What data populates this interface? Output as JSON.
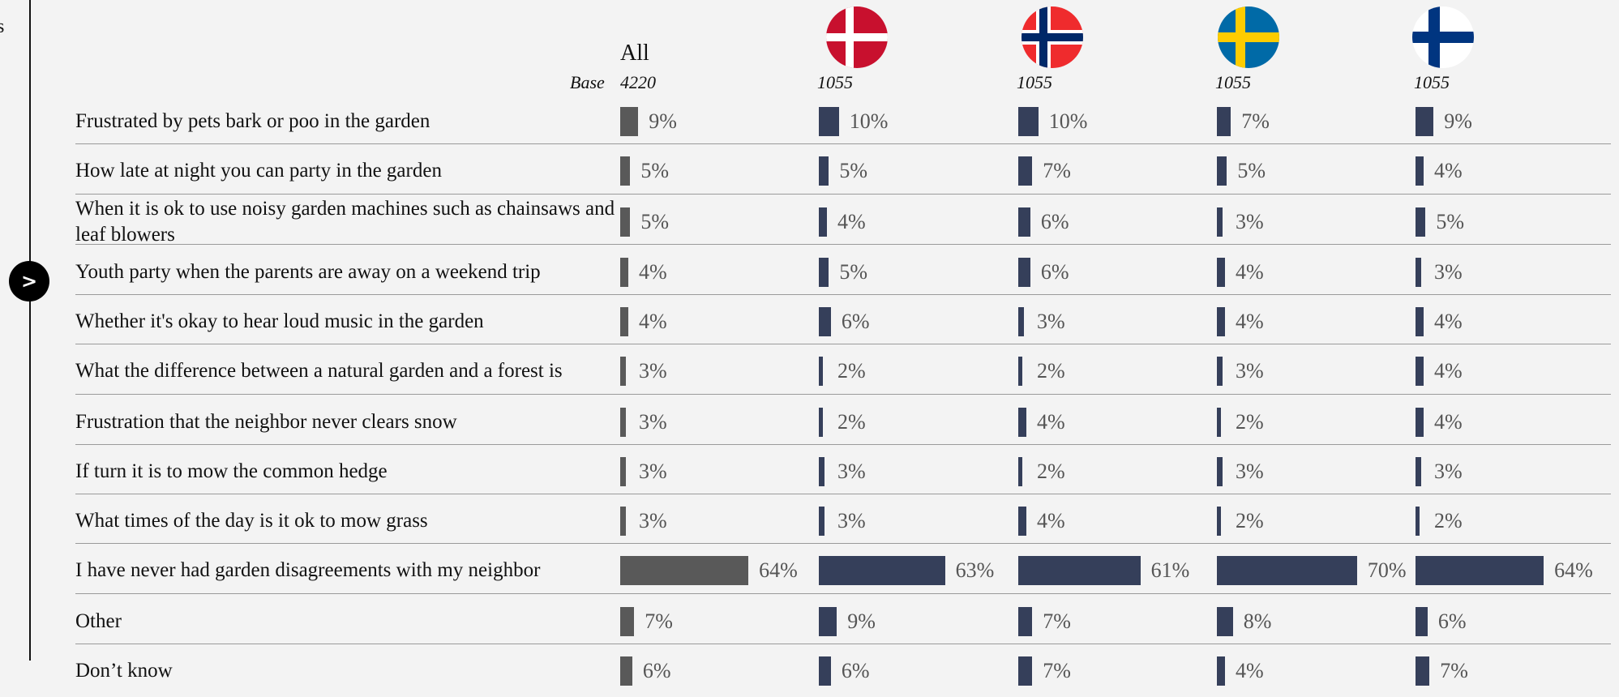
{
  "sidebar_text": "s",
  "button": ">",
  "table": {
    "base_label": "Base",
    "rows": [
      "Frustrated by pets bark or poo in the garden",
      "How late at night you can party in the garden",
      "When it is ok to use noisy garden machines such as chainsaws and leaf blowers",
      "Youth party when the parents are away on a weekend trip",
      "Whether it's okay to hear loud music in the garden",
      "What the difference between a natural garden and a forest is",
      "Frustration that the neighbor never clears snow",
      "If turn it is to mow the common hedge",
      "What times of the day is it ok to mow grass",
      "I have never had garden disagreements with my neighbor",
      "Other",
      "Don’t know"
    ],
    "columns": [
      {
        "header": "All",
        "base": 4220,
        "color": "#595959",
        "values": [
          9,
          5,
          5,
          4,
          4,
          3,
          3,
          3,
          3,
          64,
          7,
          6
        ],
        "value_labels": [
          "9%",
          "5%",
          "5%",
          "4%",
          "4%",
          "3%",
          "3%",
          "3%",
          "3%",
          "64%",
          "7%",
          "6%"
        ]
      },
      {
        "base": 1055,
        "color": "#353f5a",
        "values": [
          10,
          5,
          4,
          5,
          6,
          2,
          2,
          3,
          3,
          63,
          9,
          6
        ],
        "value_labels": [
          "10%",
          "5%",
          "4%",
          "5%",
          "6%",
          "2%",
          "2%",
          "3%",
          "3%",
          "63%",
          "9%",
          "6%"
        ]
      },
      {
        "base": 1055,
        "color": "#353f5a",
        "values": [
          10,
          7,
          6,
          6,
          3,
          2,
          4,
          2,
          4,
          61,
          7,
          7
        ],
        "value_labels": [
          "10%",
          "7%",
          "6%",
          "6%",
          "3%",
          "2%",
          "4%",
          "2%",
          "4%",
          "61%",
          "7%",
          "7%"
        ]
      },
      {
        "base": 1055,
        "color": "#353f5a",
        "values": [
          7,
          5,
          3,
          4,
          4,
          3,
          2,
          3,
          2,
          70,
          8,
          4
        ],
        "value_labels": [
          "7%",
          "5%",
          "3%",
          "4%",
          "4%",
          "3%",
          "2%",
          "3%",
          "2%",
          "70%",
          "8%",
          "4%"
        ]
      },
      {
        "base": 1055,
        "color": "#353f5a",
        "values": [
          9,
          4,
          5,
          3,
          4,
          4,
          4,
          3,
          2,
          64,
          6,
          7
        ],
        "value_labels": [
          "9%",
          "4%",
          "5%",
          "3%",
          "4%",
          "4%",
          "4%",
          "3%",
          "2%",
          "64%",
          "6%",
          "7%"
        ]
      }
    ]
  }
}
